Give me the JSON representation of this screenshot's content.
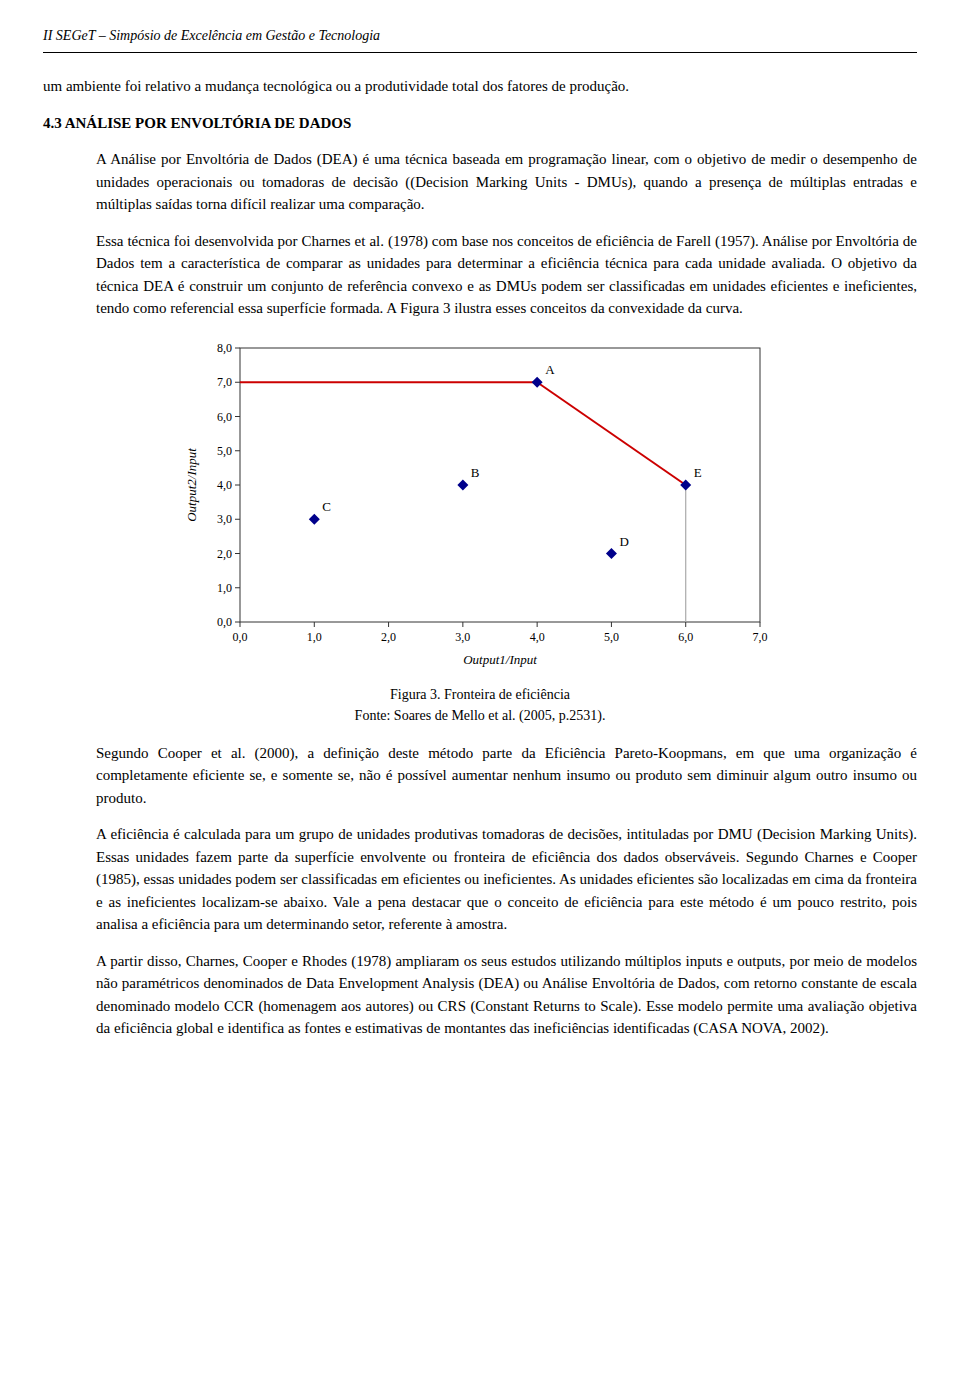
{
  "document": {
    "header": "II SEGeT – Simpósio de Excelência em Gestão e Tecnologia",
    "paragraphs": [
      {
        "indent": false,
        "bold": false,
        "text": "um ambiente foi relativo a mudança tecnológica ou a produtividade total dos fatores de produção."
      },
      {
        "indent": false,
        "bold": true,
        "text": "4.3 ANÁLISE POR ENVOLTÓRIA DE DADOS"
      },
      {
        "indent": true,
        "bold": false,
        "text": "A Análise por Envoltória de Dados (DEA) é uma técnica baseada em programação linear, com o objetivo de medir o desempenho de unidades operacionais ou tomadoras de decisão ((​Decision Marking Units - DMUs), quando a presença de múltiplas entradas e múltiplas saídas torna difícil realizar uma comparação."
      },
      {
        "indent": true,
        "bold": false,
        "text": "Essa técnica foi desenvolvida por Charnes et al. (1978) com base nos conceitos de eficiência de Farell (1957). Análise por Envoltória de Dados tem a característica de comparar as unidades para determinar a eficiência técnica para cada unidade avaliada. O objetivo da técnica DEA é construir um conjunto de referência convexo e as DMUs podem ser classificadas em unidades eficientes e ineficientes, tendo como referencial essa superfície formada. A Figura 3 ilustra esses conceitos da convexidade da curva."
      }
    ],
    "paragraphs_after": [
      {
        "indent": true,
        "bold": false,
        "text": "Segundo Cooper et al. (2000), a definição deste método parte da Eficiência Pareto-Koopmans, em que uma organização é completamente eficiente se, e somente se, não é possível aumentar nenhum insumo ou produto sem diminuir algum outro insumo ou produto."
      },
      {
        "indent": true,
        "bold": false,
        "text": "A eficiência é calculada para um grupo de unidades produtivas tomadoras de decisões, intituladas por DMU (Decision Marking Units). Essas unidades fazem parte da superfície envolvente ou fronteira de eficiência dos dados observáveis. Segundo Charnes e Cooper (1985), essas unidades podem ser classificadas em eficientes ou ineficientes. As unidades eficientes são localizadas em cima da fronteira e as ineficientes localizam-se abaixo. Vale a pena destacar que o conceito de eficiência para este método é um pouco restrito, pois analisa a eficiência para um determinando setor, referente à amostra."
      },
      {
        "indent": true,
        "bold": false,
        "text": "A partir disso, Charnes, Cooper e Rhodes (1978) ampliaram os seus estudos utilizando múltiplos inputs e outputs, por meio de modelos não paramétricos denominados de Data Envelopment Analysis (DEA) ou Análise Envoltória de Dados, com retorno constante de escala denominado modelo CCR (homenagem aos autores) ou CRS (Constant Returns to Scale). Esse modelo permite uma avaliação objetiva da eficiência global e identifica as fontes e estimativas de montantes das ineficiências identificadas (CASA NOVA, 2002)."
      }
    ]
  },
  "chart_data": {
    "type": "scatter",
    "title": "Figura 3. Fronteira de eficiência",
    "source": "Fonte: Soares de Mello et al. (2005, p.2531).",
    "x_label": "Output1/Input",
    "y_label": "Output2/Input",
    "grid": false,
    "series": [
      {
        "type": "scatter",
        "marker": "diamond",
        "color": "#00008B",
        "x": [
          4.0,
          3.0,
          1.0,
          5.0,
          6.0
        ],
        "values": [
          7.0,
          4.0,
          3.0,
          2.0,
          4.0
        ],
        "labels": [
          "A",
          "B",
          "C",
          "D",
          "E"
        ]
      },
      {
        "type": "line",
        "color": "#cc0000",
        "x": [
          0.0,
          4.0
        ],
        "values": [
          7.0,
          7.0
        ]
      },
      {
        "type": "line",
        "color": "#cc0000",
        "x": [
          4.0,
          6.0
        ],
        "values": [
          7.0,
          4.0
        ]
      },
      {
        "type": "line",
        "color": "#aaaaaa",
        "x": [
          6.0,
          6.0
        ],
        "values": [
          0.0,
          4.0
        ]
      }
    ],
    "xlim": [
      0.0,
      7.0
    ],
    "ylim": [
      0.0,
      8.0
    ],
    "xticks": [
      {
        "value": 0.0,
        "label": "0,0"
      },
      {
        "value": 1.0,
        "label": "1,0"
      },
      {
        "value": 2.0,
        "label": "2,0"
      },
      {
        "value": 3.0,
        "label": "3,0"
      },
      {
        "value": 4.0,
        "label": "4,0"
      },
      {
        "value": 5.0,
        "label": "5,0"
      },
      {
        "value": 6.0,
        "label": "6,0"
      },
      {
        "value": 7.0,
        "label": "7,0"
      }
    ],
    "yticks": [
      {
        "value": 0.0,
        "label": "0,0"
      },
      {
        "value": 1.0,
        "label": "1,0"
      },
      {
        "value": 2.0,
        "label": "2,0"
      },
      {
        "value": 3.0,
        "label": "3,0"
      },
      {
        "value": 4.0,
        "label": "4,0"
      },
      {
        "value": 5.0,
        "label": "5,0"
      },
      {
        "value": 6.0,
        "label": "6,0"
      },
      {
        "value": 7.0,
        "label": "7,0"
      },
      {
        "value": 8.0,
        "label": "8,0"
      }
    ]
  }
}
